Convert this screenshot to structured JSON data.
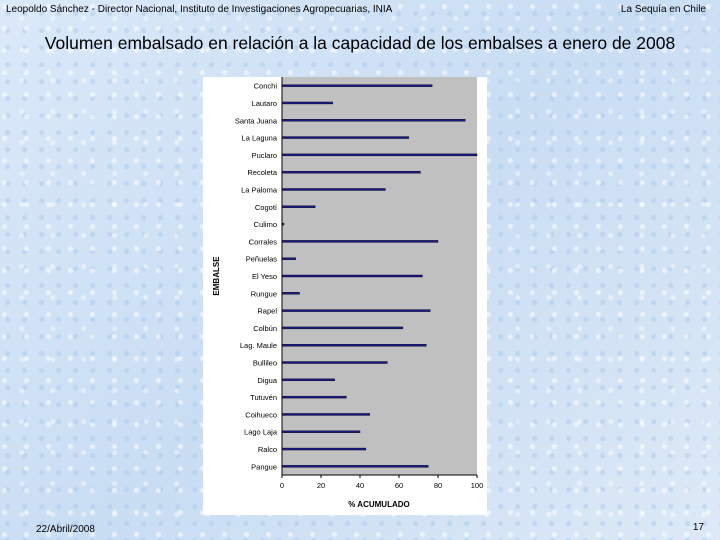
{
  "header": {
    "left": "Leopoldo Sánchez - Director Nacional, Instituto de Investigaciones Agropecuarias, INIA",
    "right": "La Sequía en Chile"
  },
  "slide_title": "Volumen embalsado en relación a la capacidad de los embalses a enero de 2008",
  "footer": {
    "date": "22/Abril/2008",
    "page": "17"
  },
  "chart_data": {
    "type": "bar",
    "orientation": "horizontal",
    "categories": [
      "Conchi",
      "Lautaro",
      "Santa Juana",
      "La Laguna",
      "Puclaro",
      "Recoleta",
      "La Paloma",
      "Cogotí",
      "Culimo",
      "Corrales",
      "Peñuelas",
      "El Yeso",
      "Rungue",
      "Rapel",
      "Colbún",
      "Lag. Maule",
      "Bullileo",
      "Digua",
      "Tutuvén",
      "Coihueco",
      "Lago Laja",
      "Ralco",
      "Pangue"
    ],
    "series": [
      {
        "values": [
          77,
          26,
          94,
          65,
          100,
          71,
          53,
          17,
          1,
          80,
          7,
          72,
          9,
          76,
          62,
          74,
          54,
          27,
          33,
          45,
          40,
          43,
          75
        ]
      }
    ],
    "xlabel": "% ACUMULADO",
    "ylabel": "EMBALSE",
    "xlim": [
      0,
      100
    ],
    "xticks": [
      0,
      20,
      40,
      60,
      80,
      100
    ],
    "grid": false,
    "colors": {
      "plot_bg": "#c0c0c0",
      "bar": "#1a1a8c",
      "bar_edge": "#000000",
      "axis": "#000000"
    }
  }
}
